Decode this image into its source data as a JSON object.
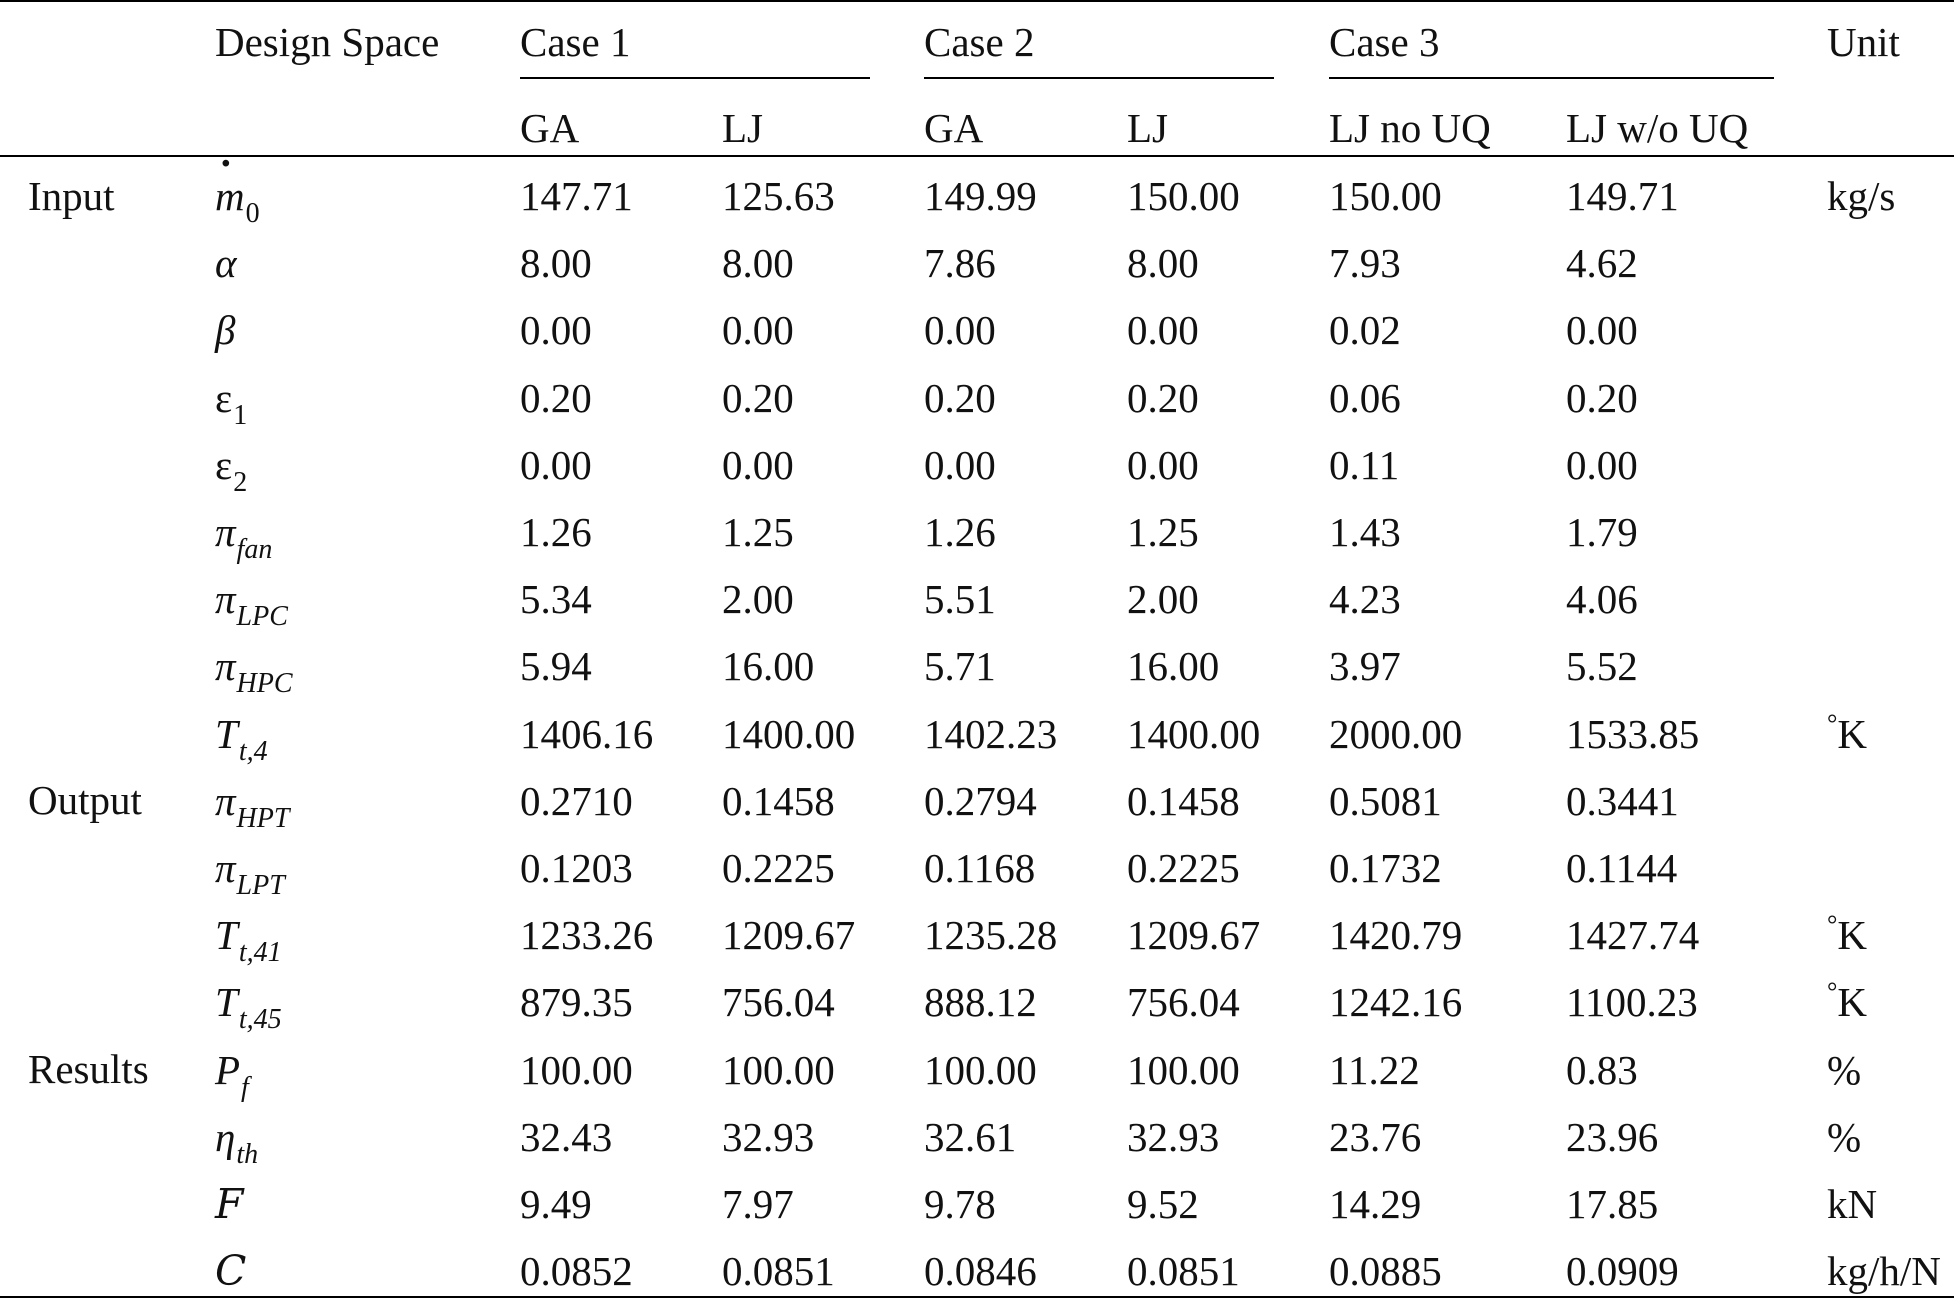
{
  "header": {
    "design_space": "Design Space",
    "case1": "Case 1",
    "case2": "Case 2",
    "case3": "Case 3",
    "unit": "Unit",
    "sub": [
      "GA",
      "LJ",
      "GA",
      "LJ",
      "LJ no UQ",
      "LJ w/o UQ"
    ]
  },
  "groups": [
    "Input",
    "Output",
    "Results"
  ],
  "rows": [
    {
      "sym": "m",
      "sub": "0",
      "values": [
        "147.71",
        "125.63",
        "149.99",
        "150.00",
        "150.00",
        "149.71"
      ],
      "unit": "kg/s"
    },
    {
      "sym": "α",
      "values": [
        "8.00",
        "8.00",
        "7.86",
        "8.00",
        "7.93",
        "4.62"
      ]
    },
    {
      "sym": "β",
      "values": [
        "0.00",
        "0.00",
        "0.00",
        "0.00",
        "0.02",
        "0.00"
      ]
    },
    {
      "sym": "ε",
      "sub": "1",
      "values": [
        "0.20",
        "0.20",
        "0.20",
        "0.20",
        "0.06",
        "0.20"
      ]
    },
    {
      "sym": "ε",
      "sub": "2",
      "values": [
        "0.00",
        "0.00",
        "0.00",
        "0.00",
        "0.11",
        "0.00"
      ]
    },
    {
      "sym": "π",
      "sub": "fan",
      "values": [
        "1.26",
        "1.25",
        "1.26",
        "1.25",
        "1.43",
        "1.79"
      ]
    },
    {
      "sym": "π",
      "sub": "LPC",
      "values": [
        "5.34",
        "2.00",
        "5.51",
        "2.00",
        "4.23",
        "4.06"
      ]
    },
    {
      "sym": "π",
      "sub": "HPC",
      "values": [
        "5.94",
        "16.00",
        "5.71",
        "16.00",
        "3.97",
        "5.52"
      ]
    },
    {
      "sym": "T",
      "sub": "t,4",
      "values": [
        "1406.16",
        "1400.00",
        "1402.23",
        "1400.00",
        "2000.00",
        "1533.85"
      ],
      "unit": "K",
      "deg": "°"
    },
    {
      "sym": "π",
      "sub": "HPT",
      "values": [
        "0.2710",
        "0.1458",
        "0.2794",
        "0.1458",
        "0.5081",
        "0.3441"
      ]
    },
    {
      "sym": "π",
      "sub": "LPT",
      "values": [
        "0.1203",
        "0.2225",
        "0.1168",
        "0.2225",
        "0.1732",
        "0.1144"
      ]
    },
    {
      "sym": "T",
      "sub": "t,41",
      "values": [
        "1233.26",
        "1209.67",
        "1235.28",
        "1209.67",
        "1420.79",
        "1427.74"
      ],
      "unit": "K",
      "deg": "°"
    },
    {
      "sym": "T",
      "sub": "t,45",
      "values": [
        "879.35",
        "756.04",
        "888.12",
        "756.04",
        "1242.16",
        "1100.23"
      ],
      "unit": "K",
      "deg": "°"
    },
    {
      "sym": "P",
      "sub": "f",
      "values": [
        "100.00",
        "100.00",
        "100.00",
        "100.00",
        "11.22",
        "0.83"
      ],
      "unit": "%"
    },
    {
      "sym": "η",
      "sub": "th",
      "values": [
        "32.43",
        "32.93",
        "32.61",
        "32.93",
        "23.76",
        "23.96"
      ],
      "unit": "%"
    },
    {
      "sym": "F",
      "values": [
        "9.49",
        "7.97",
        "9.78",
        "9.52",
        "14.29",
        "17.85"
      ],
      "unit": "kN"
    },
    {
      "sym": "C",
      "values": [
        "0.0852",
        "0.0851",
        "0.0846",
        "0.0851",
        "0.0885",
        "0.0909"
      ],
      "unit": "kg/h/N"
    }
  ]
}
